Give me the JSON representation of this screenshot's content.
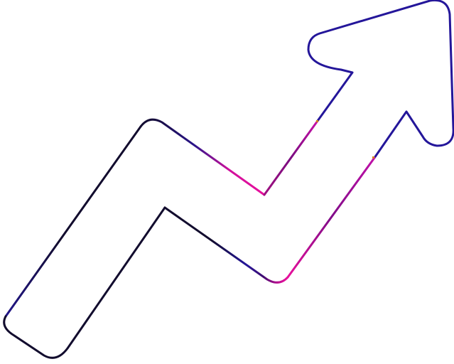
{
  "icon": {
    "name": "trending-up-arrow-icon",
    "style": "outline",
    "colors": {
      "dark": "#120c2e",
      "blue": "#24169a",
      "purple": "#8a0c8a",
      "magenta": "#e8109c"
    }
  }
}
